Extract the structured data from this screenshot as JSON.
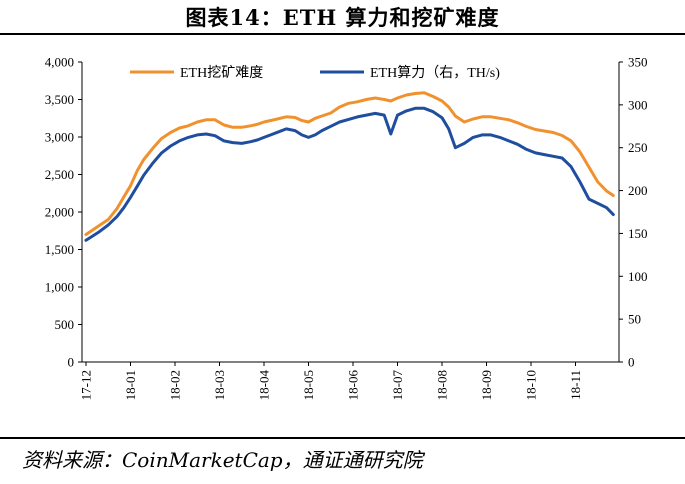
{
  "title": "图表14：ETH 算力和挖矿难度",
  "source": "资料来源：CoinMarketCap，通证通研究院",
  "chart_data": {
    "type": "line",
    "x": [
      "17-12",
      "18-01",
      "18-02",
      "18-03",
      "18-04",
      "18-05",
      "18-06",
      "18-07",
      "18-08",
      "18-09",
      "18-10",
      "18-11"
    ],
    "left_axis": {
      "ylim": [
        0,
        4000
      ],
      "ticks": [
        "0",
        "500",
        "1,000",
        "1,500",
        "2,000",
        "2,500",
        "3,000",
        "3,500",
        "4,000"
      ]
    },
    "right_axis": {
      "ylim": [
        0,
        350
      ],
      "ticks": [
        "0",
        "50",
        "100",
        "150",
        "200",
        "250",
        "300",
        "350"
      ]
    },
    "legend_position": "top",
    "series": [
      {
        "name": "ETH挖矿难度",
        "axis": "left",
        "color": "#F0912E",
        "values": [
          [
            0,
            1700
          ],
          [
            0.15,
            1760
          ],
          [
            0.3,
            1820
          ],
          [
            0.5,
            1900
          ],
          [
            0.7,
            2050
          ],
          [
            0.85,
            2200
          ],
          [
            1.0,
            2350
          ],
          [
            1.15,
            2550
          ],
          [
            1.3,
            2700
          ],
          [
            1.5,
            2850
          ],
          [
            1.7,
            2980
          ],
          [
            1.9,
            3060
          ],
          [
            2.1,
            3120
          ],
          [
            2.3,
            3150
          ],
          [
            2.5,
            3200
          ],
          [
            2.7,
            3230
          ],
          [
            2.9,
            3230
          ],
          [
            3.1,
            3160
          ],
          [
            3.3,
            3130
          ],
          [
            3.5,
            3130
          ],
          [
            3.7,
            3150
          ],
          [
            3.85,
            3170
          ],
          [
            4.0,
            3200
          ],
          [
            4.15,
            3220
          ],
          [
            4.3,
            3240
          ],
          [
            4.5,
            3270
          ],
          [
            4.7,
            3260
          ],
          [
            4.85,
            3220
          ],
          [
            5.0,
            3200
          ],
          [
            5.15,
            3250
          ],
          [
            5.3,
            3280
          ],
          [
            5.5,
            3320
          ],
          [
            5.7,
            3400
          ],
          [
            5.9,
            3450
          ],
          [
            6.1,
            3470
          ],
          [
            6.3,
            3500
          ],
          [
            6.5,
            3520
          ],
          [
            6.7,
            3500
          ],
          [
            6.85,
            3480
          ],
          [
            7.0,
            3520
          ],
          [
            7.2,
            3560
          ],
          [
            7.4,
            3580
          ],
          [
            7.6,
            3590
          ],
          [
            7.8,
            3540
          ],
          [
            8.0,
            3480
          ],
          [
            8.15,
            3400
          ],
          [
            8.3,
            3280
          ],
          [
            8.5,
            3200
          ],
          [
            8.7,
            3240
          ],
          [
            8.9,
            3270
          ],
          [
            9.1,
            3270
          ],
          [
            9.3,
            3250
          ],
          [
            9.5,
            3230
          ],
          [
            9.7,
            3190
          ],
          [
            9.9,
            3140
          ],
          [
            10.1,
            3100
          ],
          [
            10.3,
            3080
          ],
          [
            10.5,
            3060
          ],
          [
            10.7,
            3020
          ],
          [
            10.9,
            2950
          ],
          [
            11.1,
            2800
          ],
          [
            11.3,
            2600
          ],
          [
            11.5,
            2400
          ],
          [
            11.7,
            2280
          ],
          [
            11.85,
            2220
          ]
        ]
      },
      {
        "name": "ETH算力（右，TH/s)",
        "axis": "right",
        "color": "#1F4E9E",
        "values": [
          [
            0,
            142
          ],
          [
            0.15,
            147
          ],
          [
            0.3,
            152
          ],
          [
            0.5,
            160
          ],
          [
            0.7,
            170
          ],
          [
            0.85,
            180
          ],
          [
            1.0,
            192
          ],
          [
            1.15,
            205
          ],
          [
            1.3,
            218
          ],
          [
            1.5,
            232
          ],
          [
            1.7,
            244
          ],
          [
            1.9,
            252
          ],
          [
            2.1,
            258
          ],
          [
            2.3,
            262
          ],
          [
            2.5,
            265
          ],
          [
            2.7,
            266
          ],
          [
            2.9,
            264
          ],
          [
            3.1,
            258
          ],
          [
            3.3,
            256
          ],
          [
            3.5,
            255
          ],
          [
            3.7,
            257
          ],
          [
            3.85,
            259
          ],
          [
            4.0,
            262
          ],
          [
            4.15,
            265
          ],
          [
            4.3,
            268
          ],
          [
            4.5,
            272
          ],
          [
            4.7,
            270
          ],
          [
            4.85,
            265
          ],
          [
            5.0,
            262
          ],
          [
            5.15,
            265
          ],
          [
            5.3,
            270
          ],
          [
            5.5,
            275
          ],
          [
            5.7,
            280
          ],
          [
            5.9,
            283
          ],
          [
            6.1,
            286
          ],
          [
            6.3,
            288
          ],
          [
            6.5,
            290
          ],
          [
            6.7,
            288
          ],
          [
            6.85,
            266
          ],
          [
            7.0,
            288
          ],
          [
            7.2,
            293
          ],
          [
            7.4,
            296
          ],
          [
            7.6,
            296
          ],
          [
            7.8,
            292
          ],
          [
            8.0,
            285
          ],
          [
            8.15,
            272
          ],
          [
            8.3,
            250
          ],
          [
            8.5,
            255
          ],
          [
            8.7,
            262
          ],
          [
            8.9,
            265
          ],
          [
            9.1,
            265
          ],
          [
            9.3,
            262
          ],
          [
            9.5,
            258
          ],
          [
            9.7,
            254
          ],
          [
            9.9,
            248
          ],
          [
            10.1,
            244
          ],
          [
            10.3,
            242
          ],
          [
            10.5,
            240
          ],
          [
            10.7,
            238
          ],
          [
            10.9,
            228
          ],
          [
            11.1,
            210
          ],
          [
            11.3,
            190
          ],
          [
            11.5,
            185
          ],
          [
            11.7,
            180
          ],
          [
            11.85,
            172
          ]
        ]
      }
    ]
  }
}
